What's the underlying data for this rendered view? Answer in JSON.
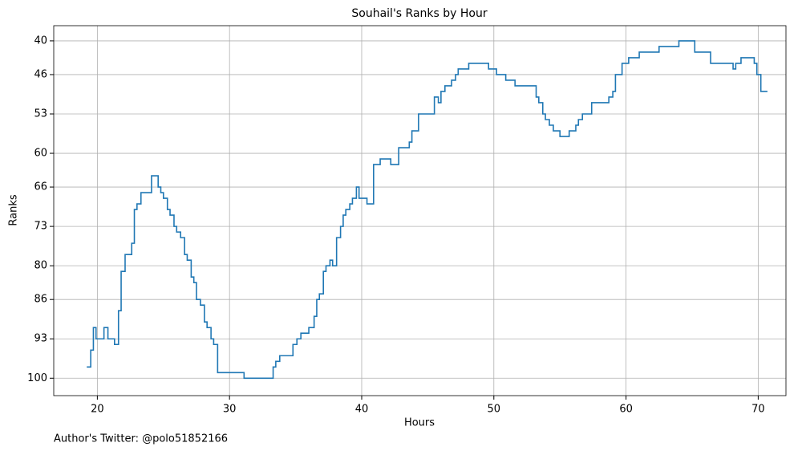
{
  "chart_data": {
    "type": "step",
    "title": "Souhail's Ranks by Hour",
    "xlabel": "Hours",
    "ylabel": "Ranks",
    "annotation": "Author's Twitter: @polo51852166",
    "x": [
      19.2,
      19.5,
      19.7,
      19.9,
      20.5,
      20.8,
      21.3,
      21.6,
      21.8,
      22.1,
      22.6,
      22.8,
      23.0,
      23.3,
      24.1,
      24.6,
      24.8,
      25.0,
      25.3,
      25.5,
      25.8,
      26.0,
      26.3,
      26.6,
      26.8,
      27.1,
      27.3,
      27.5,
      27.8,
      28.1,
      28.3,
      28.6,
      28.8,
      29.1,
      31.1,
      33.3,
      33.5,
      33.8,
      34.8,
      35.1,
      35.4,
      36.0,
      36.4,
      36.6,
      36.8,
      37.1,
      37.3,
      37.6,
      37.8,
      38.1,
      38.4,
      38.6,
      38.8,
      39.1,
      39.3,
      39.6,
      39.8,
      40.4,
      40.9,
      41.4,
      42.2,
      42.8,
      43.6,
      43.8,
      44.3,
      45.5,
      45.8,
      46.0,
      46.3,
      46.8,
      47.1,
      47.3,
      48.1,
      49.6,
      50.2,
      50.9,
      51.6,
      53.2,
      53.4,
      53.7,
      53.9,
      54.2,
      54.5,
      55.0,
      55.7,
      56.2,
      56.4,
      56.7,
      57.4,
      58.7,
      59.0,
      59.2,
      59.7,
      60.2,
      61.0,
      62.5,
      64.0,
      65.2,
      66.4,
      68.1,
      68.3,
      68.7,
      69.7,
      69.9,
      70.2,
      70.7
    ],
    "series": [
      {
        "name": "Ranks",
        "color": "#1f77b4",
        "values": [
          98,
          95,
          91,
          93,
          91,
          93,
          94,
          88,
          81,
          78,
          76,
          70,
          69,
          67,
          64,
          66,
          67,
          68,
          70,
          71,
          73,
          74,
          75,
          78,
          79,
          82,
          83,
          86,
          87,
          90,
          91,
          93,
          94,
          99,
          100,
          98,
          97,
          96,
          94,
          93,
          92,
          91,
          89,
          86,
          85,
          81,
          80,
          79,
          80,
          75,
          73,
          71,
          70,
          69,
          68,
          66,
          68,
          69,
          62,
          61,
          62,
          59,
          58,
          56,
          53,
          50,
          51,
          49,
          48,
          47,
          46,
          45,
          44,
          45,
          46,
          47,
          48,
          50,
          51,
          53,
          54,
          55,
          56,
          57,
          56,
          55,
          54,
          53,
          51,
          50,
          49,
          46,
          44,
          43,
          42,
          41,
          40,
          42,
          44,
          45,
          44,
          43,
          44,
          46,
          49,
          49
        ]
      }
    ],
    "xlim": [
      16.7,
      72.1
    ],
    "ylim": [
      103.1,
      37.3
    ],
    "xticks": [
      20,
      30,
      40,
      50,
      60,
      70
    ],
    "yticks": [
      40,
      46,
      53,
      60,
      66,
      73,
      80,
      86,
      93,
      100
    ],
    "grid": true
  }
}
